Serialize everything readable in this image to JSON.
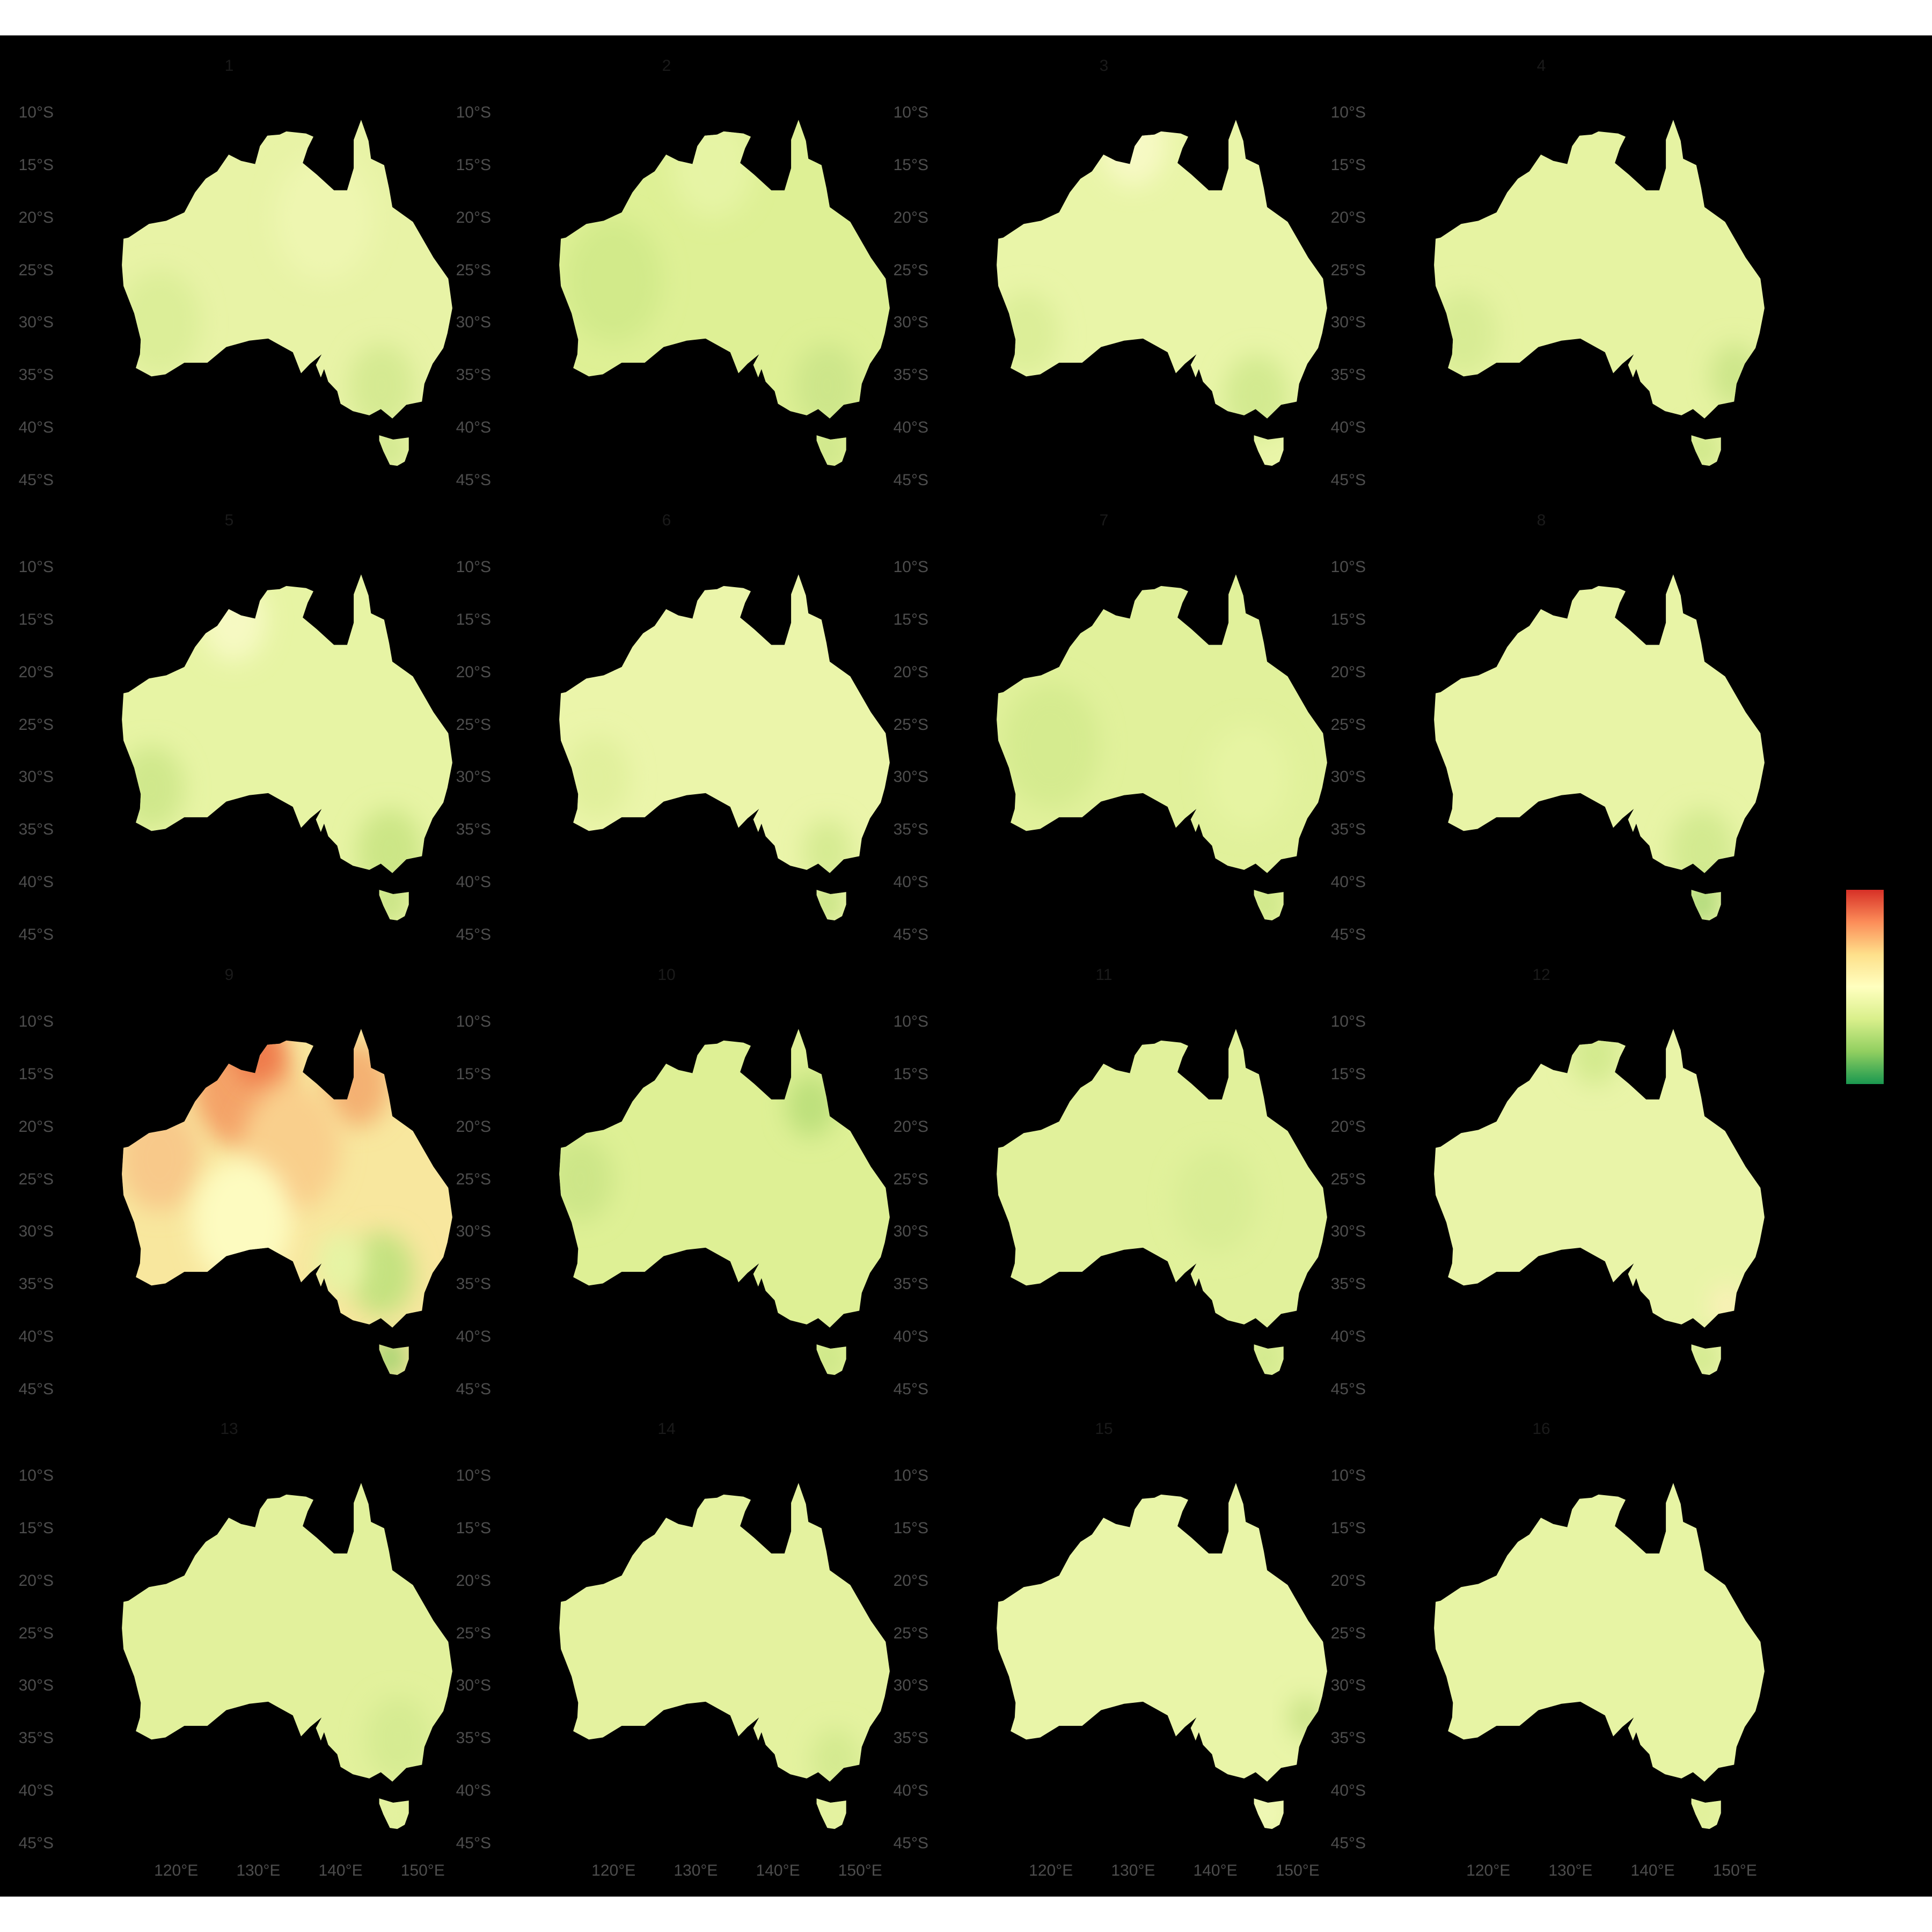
{
  "facets": [
    {
      "label": "1",
      "fill": "#e8f3a6",
      "patches": [
        {
          "lon": 118,
          "lat": -30,
          "r": 5,
          "c": "#dcee98"
        },
        {
          "lon": 145,
          "lat": -36,
          "r": 4,
          "c": "#d5ea92"
        },
        {
          "lon": 138,
          "lat": -20,
          "r": 6,
          "c": "#eef6b0"
        },
        {
          "lon": 146,
          "lat": -42,
          "r": 2,
          "c": "#cfe78c"
        }
      ]
    },
    {
      "label": "2",
      "fill": "#def095",
      "patches": [
        {
          "lon": 120,
          "lat": -26,
          "r": 6,
          "c": "#d2ea8a"
        },
        {
          "lon": 132,
          "lat": -15,
          "r": 5,
          "c": "#e6f4a4"
        },
        {
          "lon": 146,
          "lat": -36,
          "r": 4,
          "c": "#cde68a"
        },
        {
          "lon": 146,
          "lat": -42,
          "r": 2,
          "c": "#cde68a"
        }
      ]
    },
    {
      "label": "3",
      "fill": "#e9f5a8",
      "patches": [
        {
          "lon": 130,
          "lat": -13,
          "r": 4,
          "c": "#f7f9c4"
        },
        {
          "lon": 117,
          "lat": -31,
          "r": 4,
          "c": "#dcee98"
        },
        {
          "lon": 145,
          "lat": -37,
          "r": 4,
          "c": "#d3ea90"
        }
      ]
    },
    {
      "label": "4",
      "fill": "#e6f3a2",
      "patches": [
        {
          "lon": 117,
          "lat": -31,
          "r": 4,
          "c": "#d8ec94"
        },
        {
          "lon": 150,
          "lat": -35,
          "r": 3,
          "c": "#cde68a"
        },
        {
          "lon": 146,
          "lat": -42,
          "r": 2,
          "c": "#cce687"
        }
      ]
    },
    {
      "label": "5",
      "fill": "#e7f4a4",
      "patches": [
        {
          "lon": 127,
          "lat": -15,
          "r": 4,
          "c": "#f6f9c2"
        },
        {
          "lon": 117,
          "lat": -31,
          "r": 4,
          "c": "#d0e88c"
        },
        {
          "lon": 146,
          "lat": -37,
          "r": 4,
          "c": "#cce686"
        },
        {
          "lon": 146,
          "lat": -42,
          "r": 2,
          "c": "#c6e282"
        }
      ]
    },
    {
      "label": "6",
      "fill": "#ebf5aa",
      "patches": [
        {
          "lon": 118,
          "lat": -30,
          "r": 4,
          "c": "#e1f09c"
        },
        {
          "lon": 146,
          "lat": -37,
          "r": 3,
          "c": "#d6eb92"
        },
        {
          "lon": 146,
          "lat": -42,
          "r": 2,
          "c": "#c6e282"
        }
      ]
    },
    {
      "label": "7",
      "fill": "#e1f19b",
      "patches": [
        {
          "lon": 120,
          "lat": -27,
          "r": 6,
          "c": "#d5eb8f"
        },
        {
          "lon": 144,
          "lat": -30,
          "r": 5,
          "c": "#e6f4a2"
        },
        {
          "lon": 146,
          "lat": -42,
          "r": 2,
          "c": "#cce687"
        }
      ]
    },
    {
      "label": "8",
      "fill": "#e8f4a6",
      "patches": [
        {
          "lon": 146,
          "lat": -37,
          "r": 4,
          "c": "#d3ea90"
        },
        {
          "lon": 146,
          "lat": -42,
          "r": 2,
          "c": "#a9d674"
        }
      ]
    },
    {
      "label": "9",
      "fill": "#f8e79e",
      "patches": [
        {
          "lon": 128,
          "lat": -16,
          "r": 6,
          "c": "#f4a368"
        },
        {
          "lon": 130,
          "lat": -13,
          "r": 3,
          "c": "#ef7a4c"
        },
        {
          "lon": 142,
          "lat": -16,
          "r": 4,
          "c": "#f4b172"
        },
        {
          "lon": 118,
          "lat": -23,
          "r": 5,
          "c": "#f8c98a"
        },
        {
          "lon": 134,
          "lat": -22,
          "r": 6,
          "c": "#f9cf8c"
        },
        {
          "lon": 128,
          "lat": -29,
          "r": 6,
          "c": "#fdfbc0"
        },
        {
          "lon": 145,
          "lat": -34,
          "r": 4,
          "c": "#c4e280"
        },
        {
          "lon": 140,
          "lat": -33,
          "r": 3,
          "c": "#e6f4a4"
        },
        {
          "lon": 146,
          "lat": -42,
          "r": 2,
          "c": "#9fd26d"
        }
      ]
    },
    {
      "label": "10",
      "fill": "#def095",
      "patches": [
        {
          "lon": 116,
          "lat": -25,
          "r": 4,
          "c": "#cde688"
        },
        {
          "lon": 144,
          "lat": -18,
          "r": 3,
          "c": "#bde07c"
        },
        {
          "lon": 146,
          "lat": -42,
          "r": 2,
          "c": "#cce687"
        }
      ]
    },
    {
      "label": "11",
      "fill": "#e1f19b",
      "patches": [
        {
          "lon": 140,
          "lat": -27,
          "r": 5,
          "c": "#d9ed94"
        },
        {
          "lon": 146,
          "lat": -42,
          "r": 2,
          "c": "#d0e88c"
        }
      ]
    },
    {
      "label": "12",
      "fill": "#e9f4a8",
      "patches": [
        {
          "lon": 133,
          "lat": -13,
          "r": 3,
          "c": "#d3ea8e"
        },
        {
          "lon": 149,
          "lat": -37,
          "r": 2,
          "c": "#fbf0b8"
        },
        {
          "lon": 146,
          "lat": -42,
          "r": 2,
          "c": "#d0e88c"
        }
      ]
    },
    {
      "label": "13",
      "fill": "#e2f19c",
      "patches": [
        {
          "lon": 147,
          "lat": -35,
          "r": 4,
          "c": "#d6eb92"
        },
        {
          "lon": 146,
          "lat": -42,
          "r": 2,
          "c": "#e4f2a0"
        }
      ]
    },
    {
      "label": "14",
      "fill": "#e4f29f",
      "patches": [
        {
          "lon": 147,
          "lat": -37,
          "r": 3,
          "c": "#d4ea90"
        },
        {
          "lon": 146,
          "lat": -42,
          "r": 2,
          "c": "#e4f2a0"
        }
      ]
    },
    {
      "label": "15",
      "fill": "#e9f5a8",
      "patches": [
        {
          "lon": 151,
          "lat": -33,
          "r": 2,
          "c": "#c9e386"
        },
        {
          "lon": 146,
          "lat": -42,
          "r": 2,
          "c": "#f1f8b8"
        }
      ]
    },
    {
      "label": "16",
      "fill": "#e7f4a4",
      "patches": [
        {
          "lon": 146,
          "lat": -42,
          "r": 2,
          "c": "#e0f09a"
        }
      ]
    }
  ],
  "axes": {
    "lat_ticks": [
      "10°S",
      "15°S",
      "20°S",
      "25°S",
      "30°S",
      "35°S",
      "40°S",
      "45°S"
    ],
    "lat_values": [
      -10,
      -15,
      -20,
      -25,
      -30,
      -35,
      -40,
      -45
    ],
    "lon_ticks": [
      "120°E",
      "130°E",
      "140°E",
      "150°E"
    ],
    "lon_values": [
      120,
      130,
      140,
      150
    ],
    "xlim": [
      110,
      157
    ],
    "ylim": [
      -46,
      -9
    ]
  },
  "legend": {
    "gradient_colors": [
      "#d73027",
      "#fc8d59",
      "#fee08b",
      "#ffffbf",
      "#d9ef8b",
      "#91cf60",
      "#1a9850"
    ]
  },
  "colors": {
    "panel_background": "#000000",
    "page_background": "#ffffff",
    "tick_text": "#4d4d4d"
  }
}
